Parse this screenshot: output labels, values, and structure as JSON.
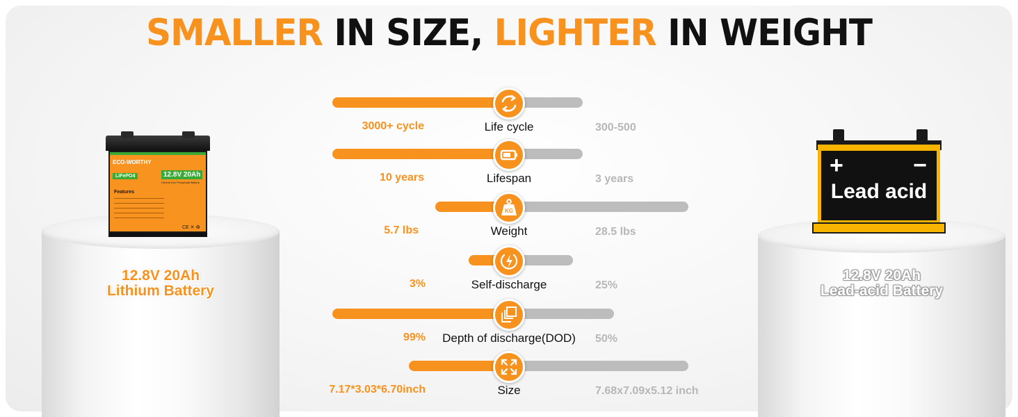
{
  "headline": {
    "part1": "SMALLER",
    "part2": "IN SIZE,",
    "part3": "LIGHTER",
    "part4": "IN WEIGHT"
  },
  "colors": {
    "accent": "#f7921e",
    "lead_bar": "#bdbdbd",
    "lead_yellow": "#f7b500"
  },
  "lithium": {
    "label_line1": "12.8V 20Ah",
    "label_line2": "Lithium Battery",
    "brand": "ECO-WORTHY",
    "chemistry": "LiFePO4",
    "spec": "12.8V 20Ah",
    "subspec": "Lithium Iron Phosphate Battery",
    "features_title": "Features",
    "certs": "CE ✕ ♻"
  },
  "lead": {
    "label_line1": "12.8V 20Ah",
    "label_line2": "Lead-acid Battery",
    "battery_text": "Lead acid",
    "plus": "+",
    "minus": "−"
  },
  "rows": [
    {
      "icon": "cycle-icon",
      "metric": "Life cycle",
      "lithium": "3000+ cycle",
      "lead": "300-500"
    },
    {
      "icon": "battery-icon",
      "metric": "Lifespan",
      "lithium": "10 years",
      "lead": "3 years"
    },
    {
      "icon": "weight-icon",
      "icon_text": "KG",
      "metric": "Weight",
      "lithium": "5.7 lbs",
      "lead": "28.5 lbs"
    },
    {
      "icon": "lightning-icon",
      "metric": "Self-discharge",
      "lithium": "3%",
      "lead": "25%"
    },
    {
      "icon": "layers-icon",
      "metric": "Depth of discharge(DOD)",
      "lithium": "99%",
      "lead": "50%"
    },
    {
      "icon": "expand-icon",
      "metric": "Size",
      "lithium": "7.17*3.03*6.70inch",
      "lead": "7.68x7.09x5.12 inch"
    }
  ]
}
